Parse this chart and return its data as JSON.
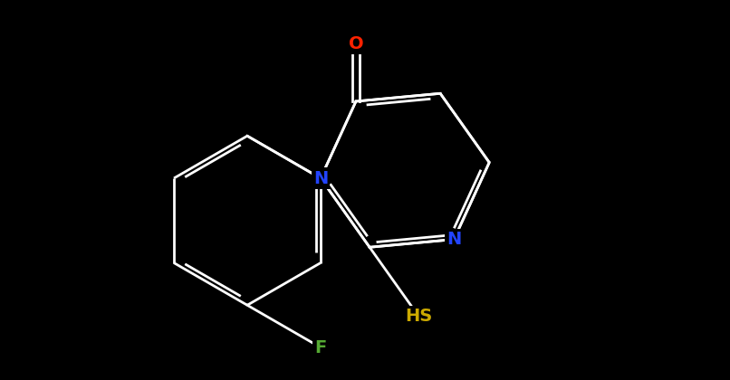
{
  "bg_color": "#000000",
  "bond_color": "#ffffff",
  "bond_width": 2.0,
  "atom_colors": {
    "O": "#ff2200",
    "N": "#2244ff",
    "F": "#55aa33",
    "S": "#ccaa00"
  },
  "font_size": 14,
  "figsize": [
    8.06,
    4.2
  ],
  "dpi": 100
}
